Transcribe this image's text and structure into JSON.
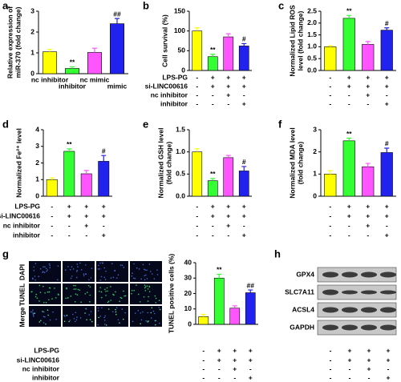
{
  "chart_data": [
    {
      "type": "bar",
      "panel": "a",
      "ylabel": [
        "Relative expression of",
        "miR-370 (fold change)"
      ],
      "categories": [
        "nc inhibitor",
        "inhibitor",
        "nc mimic",
        "mimic"
      ],
      "values": [
        1.05,
        0.25,
        1.02,
        2.4
      ],
      "errors": [
        0.12,
        0.08,
        0.2,
        0.25
      ],
      "annotations": [
        null,
        "**",
        null,
        "##"
      ],
      "colors": [
        "#ffff00",
        "#33ff33",
        "#ff55ff",
        "#2222ee"
      ],
      "ylim": [
        0,
        3
      ],
      "yticks": [
        0,
        1,
        2,
        3
      ]
    },
    {
      "type": "bar",
      "panel": "b",
      "ylabel": [
        "Cell survival (%)"
      ],
      "values": [
        100,
        35,
        85,
        62
      ],
      "errors": [
        8,
        6,
        8,
        6
      ],
      "annotations": [
        null,
        "**",
        null,
        "#"
      ],
      "colors": [
        "#ffff00",
        "#33ff33",
        "#ff55ff",
        "#2222ee"
      ],
      "ylim": [
        0,
        150
      ],
      "yticks": [
        0,
        50,
        100,
        150
      ],
      "condition_names": [
        "LPS-PG",
        "si-LINC00616",
        "nc inhibitor",
        "inhibitor"
      ],
      "condition_signs": [
        [
          "-",
          "+",
          "+",
          "+"
        ],
        [
          "-",
          "+",
          "+",
          "+"
        ],
        [
          "-",
          "-",
          "+",
          "-"
        ],
        [
          "-",
          "-",
          "-",
          "+"
        ]
      ]
    },
    {
      "type": "bar",
      "panel": "c",
      "ylabel": [
        "Normalized Lipid ROS",
        "level (fold change)"
      ],
      "values": [
        1.0,
        2.2,
        1.1,
        1.7
      ],
      "errors": [
        0.05,
        0.12,
        0.12,
        0.1
      ],
      "annotations": [
        null,
        "**",
        null,
        "#"
      ],
      "colors": [
        "#ffff00",
        "#33ff33",
        "#ff55ff",
        "#2222ee"
      ],
      "ylim": [
        0,
        2.5
      ],
      "yticks": [
        {
          "value": 0,
          "label": "0.0"
        },
        {
          "value": 0.5,
          "label": "0.5"
        },
        {
          "value": 1,
          "label": "1.0"
        },
        {
          "value": 1.5,
          "label": "1.5"
        },
        {
          "value": 2,
          "label": "2.0"
        },
        {
          "value": 2.5,
          "label": "2.5"
        }
      ],
      "condition_signs": [
        [
          "-",
          "+",
          "+",
          "+"
        ],
        [
          "-",
          "+",
          "+",
          "+"
        ],
        [
          "-",
          "-",
          "+",
          "-"
        ],
        [
          "-",
          "-",
          "-",
          "+"
        ]
      ]
    },
    {
      "type": "bar",
      "panel": "d",
      "ylabel": [
        "Normalized Fe²⁺ level"
      ],
      "values": [
        1.0,
        2.7,
        1.35,
        2.1
      ],
      "errors": [
        0.1,
        0.15,
        0.2,
        0.35
      ],
      "annotations": [
        null,
        "**",
        null,
        "#"
      ],
      "colors": [
        "#ffff00",
        "#33ff33",
        "#ff55ff",
        "#2222ee"
      ],
      "ylim": [
        0,
        4
      ],
      "yticks": [
        0,
        1,
        2,
        3,
        4
      ],
      "condition_names": [
        "LPS-PG",
        "si-LINC00616",
        "nc inhibitor",
        "inhibitor"
      ],
      "condition_signs": [
        [
          "-",
          "+",
          "+",
          "+"
        ],
        [
          "-",
          "+",
          "+",
          "+"
        ],
        [
          "-",
          "-",
          "+",
          "-"
        ],
        [
          "-",
          "-",
          "-",
          "+"
        ]
      ]
    },
    {
      "type": "bar",
      "panel": "e",
      "ylabel": [
        "Normalized GSH level",
        "(fold change)"
      ],
      "values": [
        1.0,
        0.35,
        0.87,
        0.57
      ],
      "errors": [
        0.07,
        0.05,
        0.05,
        0.1
      ],
      "annotations": [
        null,
        "**",
        null,
        "#"
      ],
      "colors": [
        "#ffff00",
        "#33ff33",
        "#ff55ff",
        "#2222ee"
      ],
      "ylim": [
        0,
        1.5
      ],
      "yticks": [
        {
          "value": 0,
          "label": "0.0"
        },
        {
          "value": 0.5,
          "label": "0.5"
        },
        {
          "value": 1,
          "label": "1.0"
        },
        {
          "value": 1.5,
          "label": "1.5"
        }
      ],
      "condition_signs": [
        [
          "-",
          "+",
          "+",
          "+"
        ],
        [
          "-",
          "+",
          "+",
          "+"
        ],
        [
          "-",
          "-",
          "+",
          "-"
        ],
        [
          "-",
          "-",
          "-",
          "+"
        ]
      ]
    },
    {
      "type": "bar",
      "panel": "f",
      "ylabel": [
        "Normalized MDA level",
        "(fold change)"
      ],
      "values": [
        1.0,
        2.5,
        1.33,
        1.97
      ],
      "errors": [
        0.15,
        0.12,
        0.15,
        0.2
      ],
      "annotations": [
        null,
        "**",
        null,
        "#"
      ],
      "colors": [
        "#ffff00",
        "#33ff33",
        "#ff55ff",
        "#2222ee"
      ],
      "ylim": [
        0,
        3
      ],
      "yticks": [
        0,
        1,
        2,
        3
      ],
      "condition_signs": [
        [
          "-",
          "+",
          "+",
          "+"
        ],
        [
          "-",
          "+",
          "+",
          "+"
        ],
        [
          "-",
          "-",
          "+",
          "-"
        ],
        [
          "-",
          "-",
          "-",
          "+"
        ]
      ]
    },
    {
      "type": "bar",
      "ylabel": [
        "TUNEL positive cells (%)"
      ],
      "values": [
        5,
        30,
        10.5,
        20.5
      ],
      "errors": [
        1.5,
        2.5,
        1.5,
        1.8
      ],
      "annotations": [
        null,
        "**",
        null,
        "##"
      ],
      "colors": [
        "#ffff00",
        "#33ff33",
        "#ff55ff",
        "#2222ee"
      ],
      "ylim": [
        0,
        40
      ],
      "yticks": [
        0,
        10,
        20,
        30,
        40
      ],
      "condition_names": [
        "LPS-PG",
        "si-LINC00616",
        "nc inhibitor",
        "inhibitor"
      ],
      "condition_signs": [
        [
          "-",
          "+",
          "+",
          "+"
        ],
        [
          "-",
          "+",
          "+",
          "+"
        ],
        [
          "-",
          "-",
          "+",
          "-"
        ],
        [
          "-",
          "-",
          "-",
          "+"
        ]
      ]
    }
  ],
  "tunel_image": {
    "panel": "g",
    "rows": [
      "DAPI",
      "TUNEL",
      "Merge"
    ]
  },
  "blot": {
    "panel": "h",
    "bands": [
      "GPX4",
      "SLC7A11",
      "ACSL4",
      "GAPDH"
    ],
    "condition_signs": [
      [
        "-",
        "+",
        "+",
        "+"
      ],
      [
        "-",
        "+",
        "+",
        "+"
      ],
      [
        "-",
        "-",
        "+",
        "-"
      ],
      [
        "-",
        "-",
        "-",
        "+"
      ]
    ]
  }
}
